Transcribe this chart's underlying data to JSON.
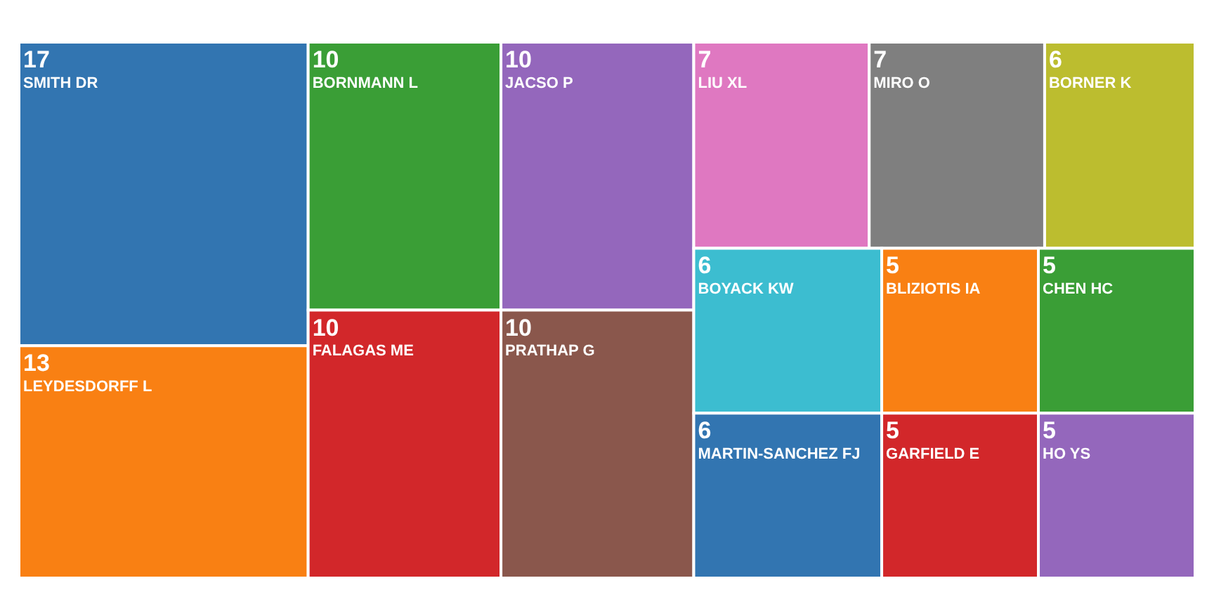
{
  "chart_data": {
    "type": "other",
    "data_labels": true,
    "categories": [
      "SMITH DR",
      "LEYDESDORFF L",
      "BORNMANN L",
      "FALAGAS ME",
      "JACSO P",
      "PRATHAP G",
      "LIU XL",
      "MIRO O",
      "BORNER K",
      "BOYACK KW",
      "MARTIN-SANCHEZ FJ",
      "BLIZIOTIS IA",
      "CHEN HC",
      "GARFIELD E",
      "HO YS"
    ],
    "values": [
      17,
      13,
      10,
      10,
      10,
      10,
      7,
      7,
      6,
      6,
      6,
      5,
      5,
      5,
      5
    ],
    "colors": [
      "#3275b1",
      "#f98013",
      "#3a9e36",
      "#d2272a",
      "#9467bc",
      "#8a574c",
      "#df78c1",
      "#7f7f7f",
      "#bcbd2f",
      "#3cbdd0",
      "#3275b1",
      "#f98013",
      "#3a9e36",
      "#d2272a",
      "#9467bc"
    ]
  }
}
